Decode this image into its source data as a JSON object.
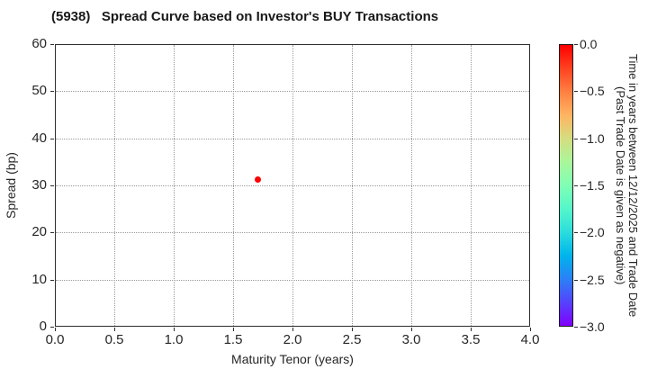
{
  "chart_data": {
    "type": "scatter",
    "title": "(5938)   Spread Curve based on Investor's BUY Transactions",
    "xlabel": "Maturity Tenor (years)",
    "ylabel": "Spread (bp)",
    "xlim": [
      0.0,
      4.0
    ],
    "ylim": [
      0,
      60
    ],
    "xtick_values": [
      0.0,
      0.5,
      1.0,
      1.5,
      2.0,
      2.5,
      3.0,
      3.5,
      4.0
    ],
    "xtick_labels": [
      "0.0",
      "0.5",
      "1.0",
      "1.5",
      "2.0",
      "2.5",
      "3.0",
      "3.5",
      "4.0"
    ],
    "ytick_values": [
      0,
      10,
      20,
      30,
      40,
      50,
      60
    ],
    "ytick_labels": [
      "0",
      "10",
      "20",
      "30",
      "40",
      "50",
      "60"
    ],
    "grid": true,
    "grid_style": "dotted",
    "points": [
      {
        "x": 1.71,
        "y": 31.3,
        "time_value": 0.0,
        "color": "#ff0000"
      }
    ],
    "colorbar": {
      "label_line1": "Time in years between 12/12/2025 and Trade Date",
      "label_line2": "(Past Trade Date is given as negative)",
      "vmax": 0.0,
      "vmin": -3.0,
      "tick_values": [
        0.0,
        -0.5,
        -1.0,
        -1.5,
        -2.0,
        -2.5,
        -3.0
      ],
      "tick_labels": [
        "0.0",
        "−0.5",
        "−1.0",
        "−1.5",
        "−2.0",
        "−2.5",
        "−3.0"
      ],
      "colormap": "rainbow_r",
      "gradient": [
        {
          "v": 0.0,
          "c": "#ff0000"
        },
        {
          "v": -0.25,
          "c": "#ff4221"
        },
        {
          "v": -0.5,
          "c": "#ff8042"
        },
        {
          "v": -0.75,
          "c": "#ffb462"
        },
        {
          "v": -1.0,
          "c": "#d5dd80"
        },
        {
          "v": -1.25,
          "c": "#aaf69b"
        },
        {
          "v": -1.5,
          "c": "#80ffb4"
        },
        {
          "v": -1.75,
          "c": "#55f6ca"
        },
        {
          "v": -2.0,
          "c": "#2bdddd"
        },
        {
          "v": -2.25,
          "c": "#00b4ec"
        },
        {
          "v": -2.5,
          "c": "#2b80f6"
        },
        {
          "v": -2.75,
          "c": "#5542fd"
        },
        {
          "v": -3.0,
          "c": "#8000ff"
        }
      ]
    },
    "colors": {
      "grid": "#9a9a9a",
      "axis": "#2e2e2e",
      "text": "#262626",
      "background": "#ffffff"
    }
  }
}
